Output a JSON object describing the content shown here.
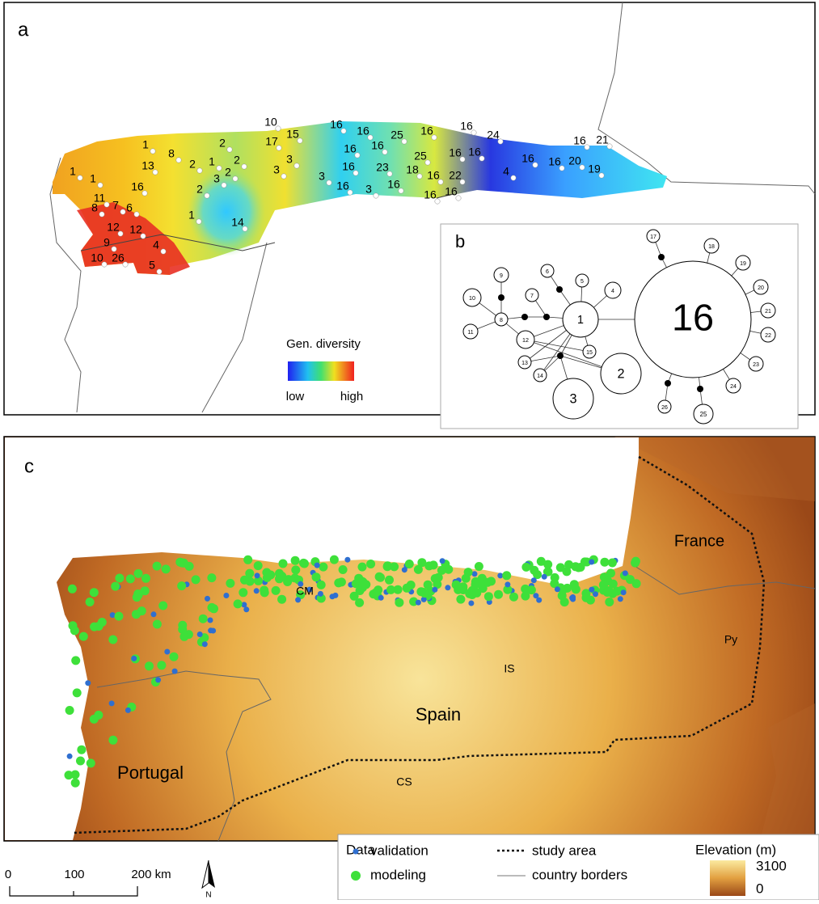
{
  "panel_a": {
    "label": "a",
    "sites": [
      1,
      1,
      11,
      8,
      7,
      6,
      16,
      12,
      12,
      9,
      10,
      26,
      4,
      5,
      1,
      8,
      13,
      2,
      2,
      1,
      2,
      2,
      3,
      2,
      1,
      14,
      10,
      17,
      15,
      3,
      3,
      3,
      16,
      16,
      16,
      16,
      16,
      16,
      3,
      23,
      16,
      18,
      25,
      16,
      25,
      16,
      16,
      22,
      16,
      16,
      16,
      16,
      24,
      16,
      4,
      16,
      16,
      21,
      20,
      19
    ],
    "legend": {
      "title": "Gen. diversity",
      "low": "low",
      "high": "high"
    }
  },
  "panel_b": {
    "label": "b",
    "haplotypes": [
      1,
      16,
      2,
      3,
      4,
      5,
      6,
      7,
      8,
      9,
      10,
      11,
      12,
      13,
      14,
      15,
      17,
      18,
      19,
      20,
      21,
      22,
      23,
      24,
      25,
      26
    ]
  },
  "panel_c": {
    "label": "c",
    "places": [
      "France",
      "CM",
      "Py",
      "IS",
      "Spain",
      "Portugal",
      "CS"
    ],
    "legend": {
      "title": "Data",
      "validation": "validation",
      "modeling": "modeling",
      "study_area": "study area",
      "borders": "country borders",
      "elevation_title": "Elevation (m)",
      "elevation_max": 3100,
      "elevation_min": 0
    },
    "scale": [
      0,
      100,
      "200 km"
    ],
    "north": "N"
  }
}
